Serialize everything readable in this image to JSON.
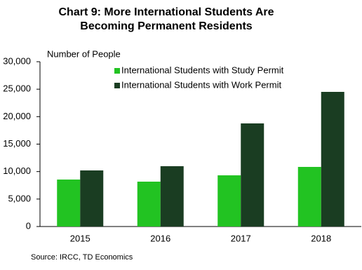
{
  "chart_data": {
    "type": "bar",
    "title": "Chart 9: More International Students Are Becoming Permanent Residents",
    "y_axis_label": "Number of People",
    "source": "Source: IRCC,  TD Economics",
    "categories": [
      "2015",
      "2016",
      "2017",
      "2018"
    ],
    "series": [
      {
        "name": "International Students with Study Permit",
        "color": "#22c322",
        "values": [
          8550,
          8170,
          9320,
          10850
        ]
      },
      {
        "name": "International Students with Work Permit",
        "color": "#1a3d22",
        "values": [
          10210,
          10980,
          18770,
          24510
        ]
      }
    ],
    "ylim": [
      0,
      30000
    ],
    "yticks": [
      0,
      {
        "value": 5000,
        "label": "5,000"
      },
      {
        "value": 10000,
        "label": "10,000"
      },
      {
        "value": 15000,
        "label": "15,000"
      },
      {
        "value": 20000,
        "label": "20,000"
      },
      {
        "value": 25000,
        "label": "25,000"
      },
      {
        "value": 30000,
        "label": "30,000"
      }
    ],
    "grid": false
  }
}
